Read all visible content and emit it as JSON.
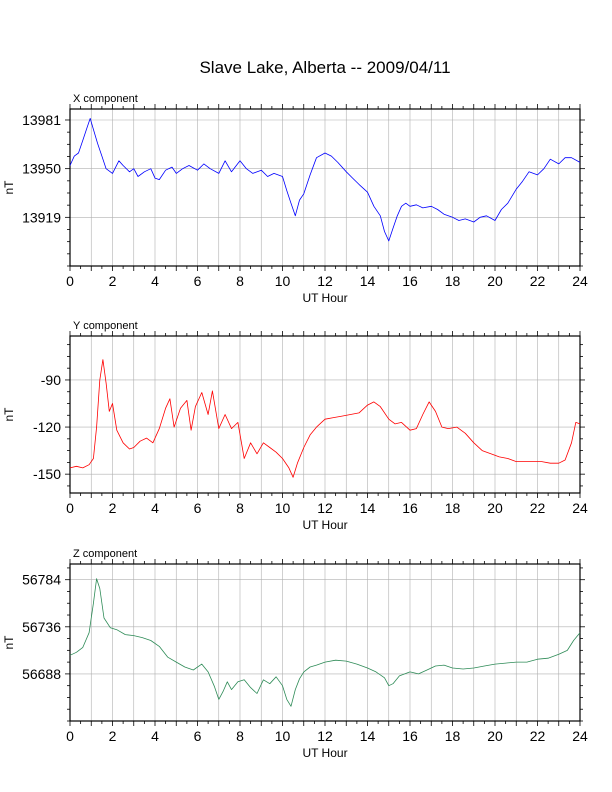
{
  "title": "Slave Lake, Alberta -- 2009/04/11",
  "chart_data": [
    {
      "type": "line",
      "title": "X component",
      "xlabel": "UT Hour",
      "ylabel": "nT",
      "xlim": [
        0,
        24
      ],
      "ylim": [
        13888,
        13988
      ],
      "xticks": [
        0,
        2,
        4,
        6,
        8,
        10,
        12,
        14,
        16,
        18,
        20,
        22,
        24
      ],
      "yticks": [
        13981,
        13950,
        13919
      ],
      "grid": true,
      "color": "#0000ff",
      "series": [
        {
          "x": [
            0,
            0.2,
            0.4,
            0.6,
            0.8,
            0.95,
            1.1,
            1.3,
            1.5,
            1.7,
            2.0,
            2.3,
            2.5,
            2.8,
            3.0,
            3.2,
            3.5,
            3.8,
            4.0,
            4.2,
            4.5,
            4.8,
            5.0,
            5.3,
            5.6,
            6.0,
            6.3,
            6.6,
            7.0,
            7.3,
            7.6,
            8.0,
            8.3,
            8.6,
            9.0,
            9.3,
            9.6,
            10.0,
            10.2,
            10.4,
            10.6,
            10.8,
            11.0,
            11.3,
            11.6,
            12.0,
            12.3,
            12.6,
            13.0,
            13.3,
            13.6,
            14.0,
            14.3,
            14.6,
            14.8,
            15.0,
            15.2,
            15.4,
            15.6,
            15.8,
            16.0,
            16.3,
            16.6,
            17.0,
            17.3,
            17.6,
            18.0,
            18.3,
            18.6,
            19.0,
            19.3,
            19.6,
            20.0,
            20.3,
            20.6,
            21.0,
            21.3,
            21.6,
            22.0,
            22.3,
            22.6,
            23.0,
            23.3,
            23.6,
            24.0
          ],
          "y": [
            13952,
            13958,
            13960,
            13968,
            13976,
            13982,
            13975,
            13966,
            13958,
            13950,
            13947,
            13955,
            13952,
            13948,
            13950,
            13945,
            13948,
            13950,
            13944,
            13943,
            13949,
            13951,
            13947,
            13950,
            13952,
            13949,
            13953,
            13950,
            13947,
            13955,
            13948,
            13955,
            13950,
            13947,
            13949,
            13945,
            13947,
            13945,
            13936,
            13928,
            13920,
            13930,
            13934,
            13946,
            13957,
            13960,
            13958,
            13954,
            13948,
            13944,
            13940,
            13935,
            13926,
            13920,
            13910,
            13904,
            13912,
            13920,
            13926,
            13928,
            13926,
            13927,
            13925,
            13926,
            13924,
            13921,
            13919,
            13917,
            13918,
            13916,
            13919,
            13920,
            13917,
            13924,
            13928,
            13937,
            13942,
            13948,
            13946,
            13950,
            13956,
            13953,
            13957,
            13957,
            13954
          ]
        }
      ]
    },
    {
      "type": "line",
      "title": "Y component",
      "xlabel": "UT Hour",
      "ylabel": "nT",
      "xlim": [
        0,
        24
      ],
      "ylim": [
        -162,
        -62
      ],
      "xticks": [
        0,
        2,
        4,
        6,
        8,
        10,
        12,
        14,
        16,
        18,
        20,
        22,
        24
      ],
      "yticks": [
        -90,
        -120,
        -150
      ],
      "grid": true,
      "color": "#ff0000",
      "series": [
        {
          "x": [
            0,
            0.3,
            0.6,
            0.9,
            1.1,
            1.25,
            1.4,
            1.55,
            1.7,
            1.85,
            2.0,
            2.2,
            2.5,
            2.8,
            3.0,
            3.3,
            3.6,
            3.9,
            4.2,
            4.5,
            4.7,
            4.9,
            5.2,
            5.5,
            5.7,
            5.9,
            6.2,
            6.5,
            6.7,
            7.0,
            7.3,
            7.6,
            7.9,
            8.2,
            8.5,
            8.8,
            9.1,
            9.4,
            9.7,
            10.0,
            10.3,
            10.5,
            10.7,
            11.0,
            11.3,
            11.6,
            12.0,
            12.4,
            12.8,
            13.2,
            13.6,
            14.0,
            14.3,
            14.6,
            15.0,
            15.3,
            15.6,
            16.0,
            16.3,
            16.6,
            16.9,
            17.2,
            17.5,
            17.8,
            18.2,
            18.6,
            19.0,
            19.4,
            19.8,
            20.2,
            20.6,
            21.0,
            21.4,
            21.8,
            22.2,
            22.6,
            23.0,
            23.3,
            23.6,
            23.8,
            24.0
          ],
          "y": [
            -146,
            -145,
            -146,
            -144,
            -140,
            -120,
            -90,
            -77,
            -92,
            -110,
            -105,
            -122,
            -130,
            -134,
            -133,
            -129,
            -127,
            -130,
            -121,
            -108,
            -102,
            -120,
            -108,
            -103,
            -122,
            -107,
            -98,
            -112,
            -97,
            -121,
            -112,
            -121,
            -117,
            -140,
            -130,
            -137,
            -130,
            -133,
            -136,
            -140,
            -146,
            -152,
            -143,
            -133,
            -125,
            -120,
            -115,
            -114,
            -113,
            -112,
            -111,
            -106,
            -104,
            -107,
            -115,
            -118,
            -117,
            -122,
            -121,
            -112,
            -104,
            -110,
            -120,
            -121,
            -120,
            -124,
            -130,
            -135,
            -137,
            -139,
            -140,
            -142,
            -142,
            -142,
            -142,
            -143,
            -143,
            -141,
            -130,
            -117,
            -118
          ]
        }
      ]
    },
    {
      "type": "line",
      "title": "Z component",
      "xlabel": "UT Hour",
      "ylabel": "nT",
      "xlim": [
        0,
        24
      ],
      "ylim": [
        56640,
        56800
      ],
      "xticks": [
        0,
        2,
        4,
        6,
        8,
        10,
        12,
        14,
        16,
        18,
        20,
        22,
        24
      ],
      "yticks": [
        56784,
        56736,
        56688
      ],
      "grid": true,
      "color": "#2e8b57",
      "series": [
        {
          "x": [
            0,
            0.3,
            0.6,
            0.9,
            1.1,
            1.25,
            1.4,
            1.6,
            1.9,
            2.2,
            2.6,
            3.0,
            3.4,
            3.8,
            4.2,
            4.6,
            5.0,
            5.4,
            5.8,
            6.2,
            6.5,
            6.8,
            7.0,
            7.2,
            7.4,
            7.6,
            7.9,
            8.2,
            8.5,
            8.8,
            9.1,
            9.4,
            9.7,
            10.0,
            10.2,
            10.4,
            10.6,
            10.8,
            11.0,
            11.3,
            11.6,
            12.0,
            12.5,
            13.0,
            13.5,
            14.0,
            14.4,
            14.8,
            15.0,
            15.2,
            15.5,
            16.0,
            16.4,
            16.8,
            17.2,
            17.6,
            18.0,
            18.5,
            19.0,
            19.5,
            20.0,
            20.5,
            21.0,
            21.5,
            22.0,
            22.5,
            23.0,
            23.4,
            23.7,
            24.0
          ],
          "y": [
            56707,
            56710,
            56715,
            56730,
            56760,
            56785,
            56775,
            56745,
            56735,
            56733,
            56728,
            56727,
            56725,
            56722,
            56716,
            56705,
            56700,
            56695,
            56692,
            56698,
            56690,
            56675,
            56662,
            56670,
            56680,
            56672,
            56680,
            56682,
            56674,
            56668,
            56682,
            56678,
            56685,
            56676,
            56662,
            56655,
            56672,
            56683,
            56690,
            56695,
            56697,
            56700,
            56702,
            56701,
            56698,
            56694,
            56690,
            56684,
            56676,
            56678,
            56686,
            56690,
            56688,
            56692,
            56696,
            56697,
            56694,
            56693,
            56694,
            56696,
            56698,
            56699,
            56700,
            56700,
            56703,
            56704,
            56708,
            56712,
            56722,
            56730
          ]
        }
      ]
    }
  ]
}
